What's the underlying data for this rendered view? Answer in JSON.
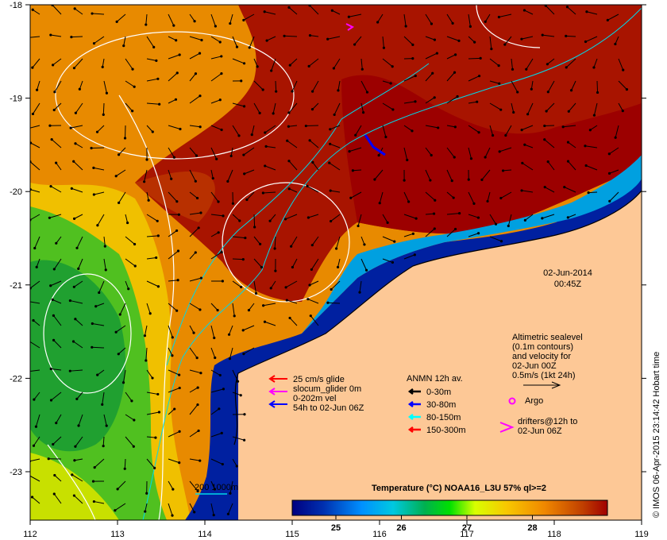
{
  "map": {
    "lon_ticks": [
      "112",
      "113",
      "114",
      "115",
      "116",
      "117",
      "118",
      "119"
    ],
    "lat_ticks": [
      "-18",
      "-19",
      "-20",
      "-21",
      "-22",
      "-23"
    ],
    "date": "02-Jun-2014",
    "time": "00:45Z",
    "credit": "© IMOS 06-Apr-2015 23:14:42 Hobart time"
  },
  "glider_legend": {
    "lines": [
      "25 cm/s glide",
      "slocum_glider 0m",
      "0-202m vel",
      "54h to 02-Jun 06Z"
    ],
    "colors": [
      "#ff0000",
      "#ff00ff",
      "#0000ff"
    ]
  },
  "anmn_legend": {
    "title": "ANMN 12h av.",
    "items": [
      {
        "label": "0-30m",
        "color": "#000000"
      },
      {
        "label": "30-80m",
        "color": "#0000ff"
      },
      {
        "label": "80-150m",
        "color": "#00ffff"
      },
      {
        "label": "150-300m",
        "color": "#ff0000"
      }
    ]
  },
  "altimetry_legend": {
    "lines": [
      "Altimetric sealevel",
      "(0.1m contours)",
      "and velocity for",
      "02-Jun 00Z",
      "0.5m/s (1kt 24h)"
    ]
  },
  "argo_label": "Argo",
  "drifters_legend": {
    "lines": [
      "drifters@12h to",
      "02-Jun 06Z"
    ]
  },
  "isobath_label": "200  1000m",
  "colorbar": {
    "title": "Temperature (°C) NOAA16_L3U 57% ql>=2",
    "ticks": [
      "25",
      "26",
      "27",
      "28"
    ],
    "colors": [
      "#000080",
      "#0040c0",
      "#0090ff",
      "#00c8e0",
      "#00b050",
      "#00e000",
      "#d8ff00",
      "#f8d000",
      "#f09000",
      "#d06000",
      "#a00000"
    ]
  }
}
